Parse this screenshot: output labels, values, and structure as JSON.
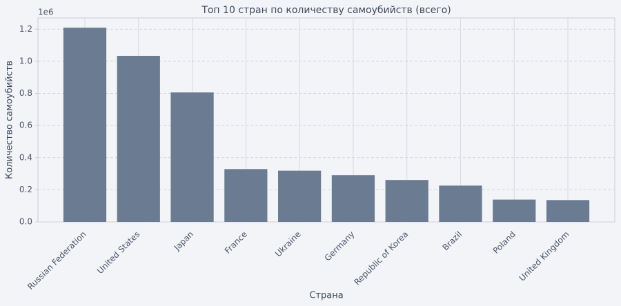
{
  "chart_data": {
    "type": "bar",
    "title": "Топ 10 стран по количеству самоубийств (всего)",
    "x_label": "Страна",
    "y_label": "Количество самоубийств",
    "y_offset_label": "1e6",
    "categories": [
      "Russian Federation",
      "United States",
      "Japan",
      "France",
      "Ukraine",
      "Germany",
      "Republic of Korea",
      "Brazil",
      "Poland",
      "United Kingdom"
    ],
    "values": [
      1.209,
      1.034,
      0.806,
      0.329,
      0.319,
      0.291,
      0.261,
      0.226,
      0.139,
      0.136
    ],
    "color": "#6b7b91",
    "ylim": [
      0,
      1.27
    ],
    "yticks": [
      {
        "value": 0,
        "label": "0.0"
      },
      0.2,
      0.4,
      0.6,
      0.8,
      {
        "value": 1,
        "label": "1.0"
      },
      1.2
    ],
    "grid": true
  }
}
